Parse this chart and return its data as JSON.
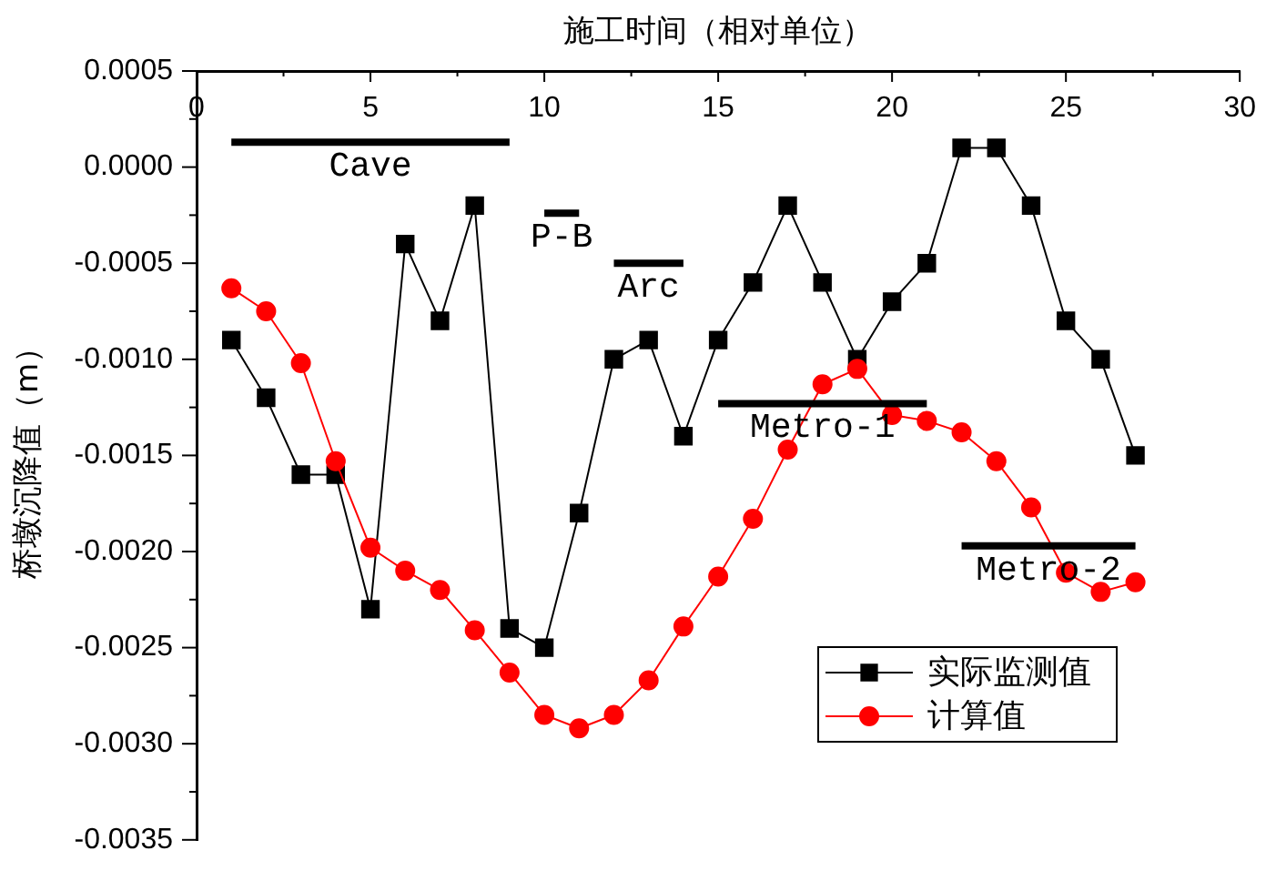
{
  "chart_data": {
    "type": "line",
    "xlabel": "施工时间（相对单位）",
    "ylabel": "桥墩沉降值（m）",
    "x": [
      1,
      2,
      3,
      4,
      5,
      6,
      7,
      8,
      9,
      10,
      11,
      12,
      13,
      14,
      15,
      16,
      17,
      18,
      19,
      20,
      21,
      22,
      23,
      24,
      25,
      26,
      27
    ],
    "xlim": [
      0,
      30
    ],
    "xticks": [
      0,
      {
        "value": 2.5,
        "label": null
      },
      5,
      {
        "value": 7.5,
        "label": null
      },
      10,
      {
        "value": 12.5,
        "label": null
      },
      15,
      {
        "value": 17.5,
        "label": null
      },
      20,
      {
        "value": 22.5,
        "label": null
      },
      25,
      {
        "value": 27.5,
        "label": null
      },
      30
    ],
    "ylim": [
      -0.0035,
      0.0005
    ],
    "yticks": [
      {
        "value": 0.0005,
        "label": "0.0005"
      },
      {
        "value": 0.00025,
        "label": null
      },
      {
        "value": 0,
        "label": "0.0000"
      },
      {
        "value": -0.00025,
        "label": null
      },
      {
        "value": -0.0005,
        "label": "-0.0005"
      },
      {
        "value": -0.00075,
        "label": null
      },
      {
        "value": -0.001,
        "label": "-0.0010"
      },
      {
        "value": -0.00125,
        "label": null
      },
      {
        "value": -0.0015,
        "label": "-0.0015"
      },
      {
        "value": -0.00175,
        "label": null
      },
      {
        "value": -0.002,
        "label": "-0.0020"
      },
      {
        "value": -0.00225,
        "label": null
      },
      {
        "value": -0.0025,
        "label": "-0.0025"
      },
      {
        "value": -0.00275,
        "label": null
      },
      {
        "value": -0.003,
        "label": "-0.0030"
      },
      {
        "value": -0.00325,
        "label": null
      },
      {
        "value": -0.0035,
        "label": "-0.0035"
      }
    ],
    "series": [
      {
        "name": "实际监测值",
        "color": "#000000",
        "marker": "square",
        "values": [
          -0.0009,
          -0.0012,
          -0.0016,
          -0.0016,
          -0.0023,
          -0.0004,
          -0.0008,
          -0.0002,
          -0.0024,
          -0.0025,
          -0.0018,
          -0.001,
          -0.0009,
          -0.0014,
          -0.0009,
          -0.0006,
          -0.0002,
          -0.0006,
          -0.001,
          -0.0007,
          -0.0005,
          0.0001,
          0.0001,
          -0.0002,
          -0.0008,
          -0.001,
          -0.0015
        ]
      },
      {
        "name": "计算值",
        "color": "#ff0000",
        "marker": "circle",
        "values": [
          -0.00063,
          -0.00075,
          -0.00102,
          -0.00153,
          -0.00198,
          -0.0021,
          -0.0022,
          -0.00241,
          -0.00263,
          -0.00285,
          -0.00292,
          -0.00285,
          -0.00267,
          -0.00239,
          -0.00213,
          -0.00183,
          -0.00147,
          -0.00113,
          -0.00105,
          -0.00129,
          -0.00132,
          -0.00138,
          -0.00153,
          -0.00177,
          -0.00211,
          -0.00221,
          -0.00216
        ]
      },
      {
        "name": "Cave",
        "color": "#000000",
        "marker": "none",
        "x": [
          1,
          9
        ],
        "values": [
          0.00013,
          0.00013
        ]
      },
      {
        "name": "P-B",
        "color": "#000000",
        "marker": "none",
        "x": [
          10,
          11
        ],
        "values": [
          -0.00024,
          -0.00024
        ]
      },
      {
        "name": "Arc",
        "color": "#000000",
        "marker": "none",
        "x": [
          12,
          14
        ],
        "values": [
          -0.0005,
          -0.0005
        ]
      },
      {
        "name": "Metro-1",
        "color": "#000000",
        "marker": "none",
        "x": [
          15,
          21
        ],
        "values": [
          -0.00123,
          -0.00123
        ]
      },
      {
        "name": "Metro-2",
        "color": "#000000",
        "marker": "none",
        "x": [
          22,
          27
        ],
        "values": [
          -0.00197,
          -0.00197
        ]
      }
    ],
    "legend": "bottom right",
    "grid": false
  }
}
